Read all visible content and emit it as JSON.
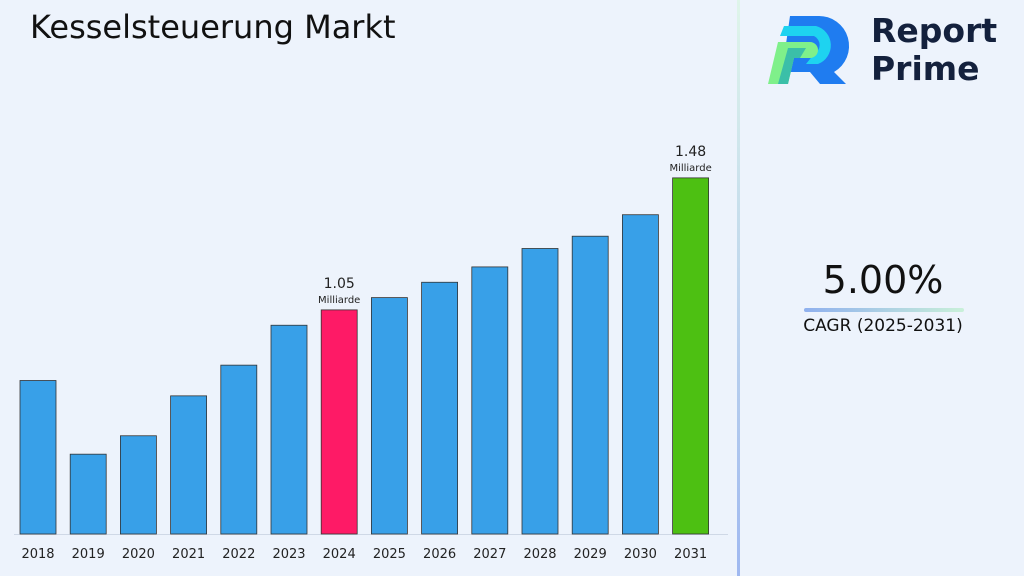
{
  "title": "Kesselsteuerung Markt",
  "logo": {
    "line1": "Report",
    "line2": "Prime"
  },
  "cagr": {
    "value": "5.00%",
    "label": "CAGR (2025-2031)"
  },
  "colors": {
    "default": "#38a0e8",
    "highlight_2024": "#fe1a66",
    "highlight_2031": "#4dc012"
  },
  "chart_data": {
    "type": "bar",
    "title": "Kesselsteuerung Markt",
    "categories": [
      "2018",
      "2019",
      "2020",
      "2021",
      "2022",
      "2023",
      "2024",
      "2025",
      "2026",
      "2027",
      "2028",
      "2029",
      "2030",
      "2031"
    ],
    "values": [
      0.82,
      0.58,
      0.64,
      0.77,
      0.87,
      1.0,
      1.05,
      1.09,
      1.14,
      1.19,
      1.25,
      1.29,
      1.36,
      1.48
    ],
    "unit": "Milliarde",
    "data_labels": [
      {
        "category": "2024",
        "value": "1.05",
        "unit": "Milliarde"
      },
      {
        "category": "2031",
        "value": "1.48",
        "unit": "Milliarde"
      }
    ],
    "ylim": [
      0.32,
      1.6
    ],
    "grid": false,
    "legend": "none"
  }
}
